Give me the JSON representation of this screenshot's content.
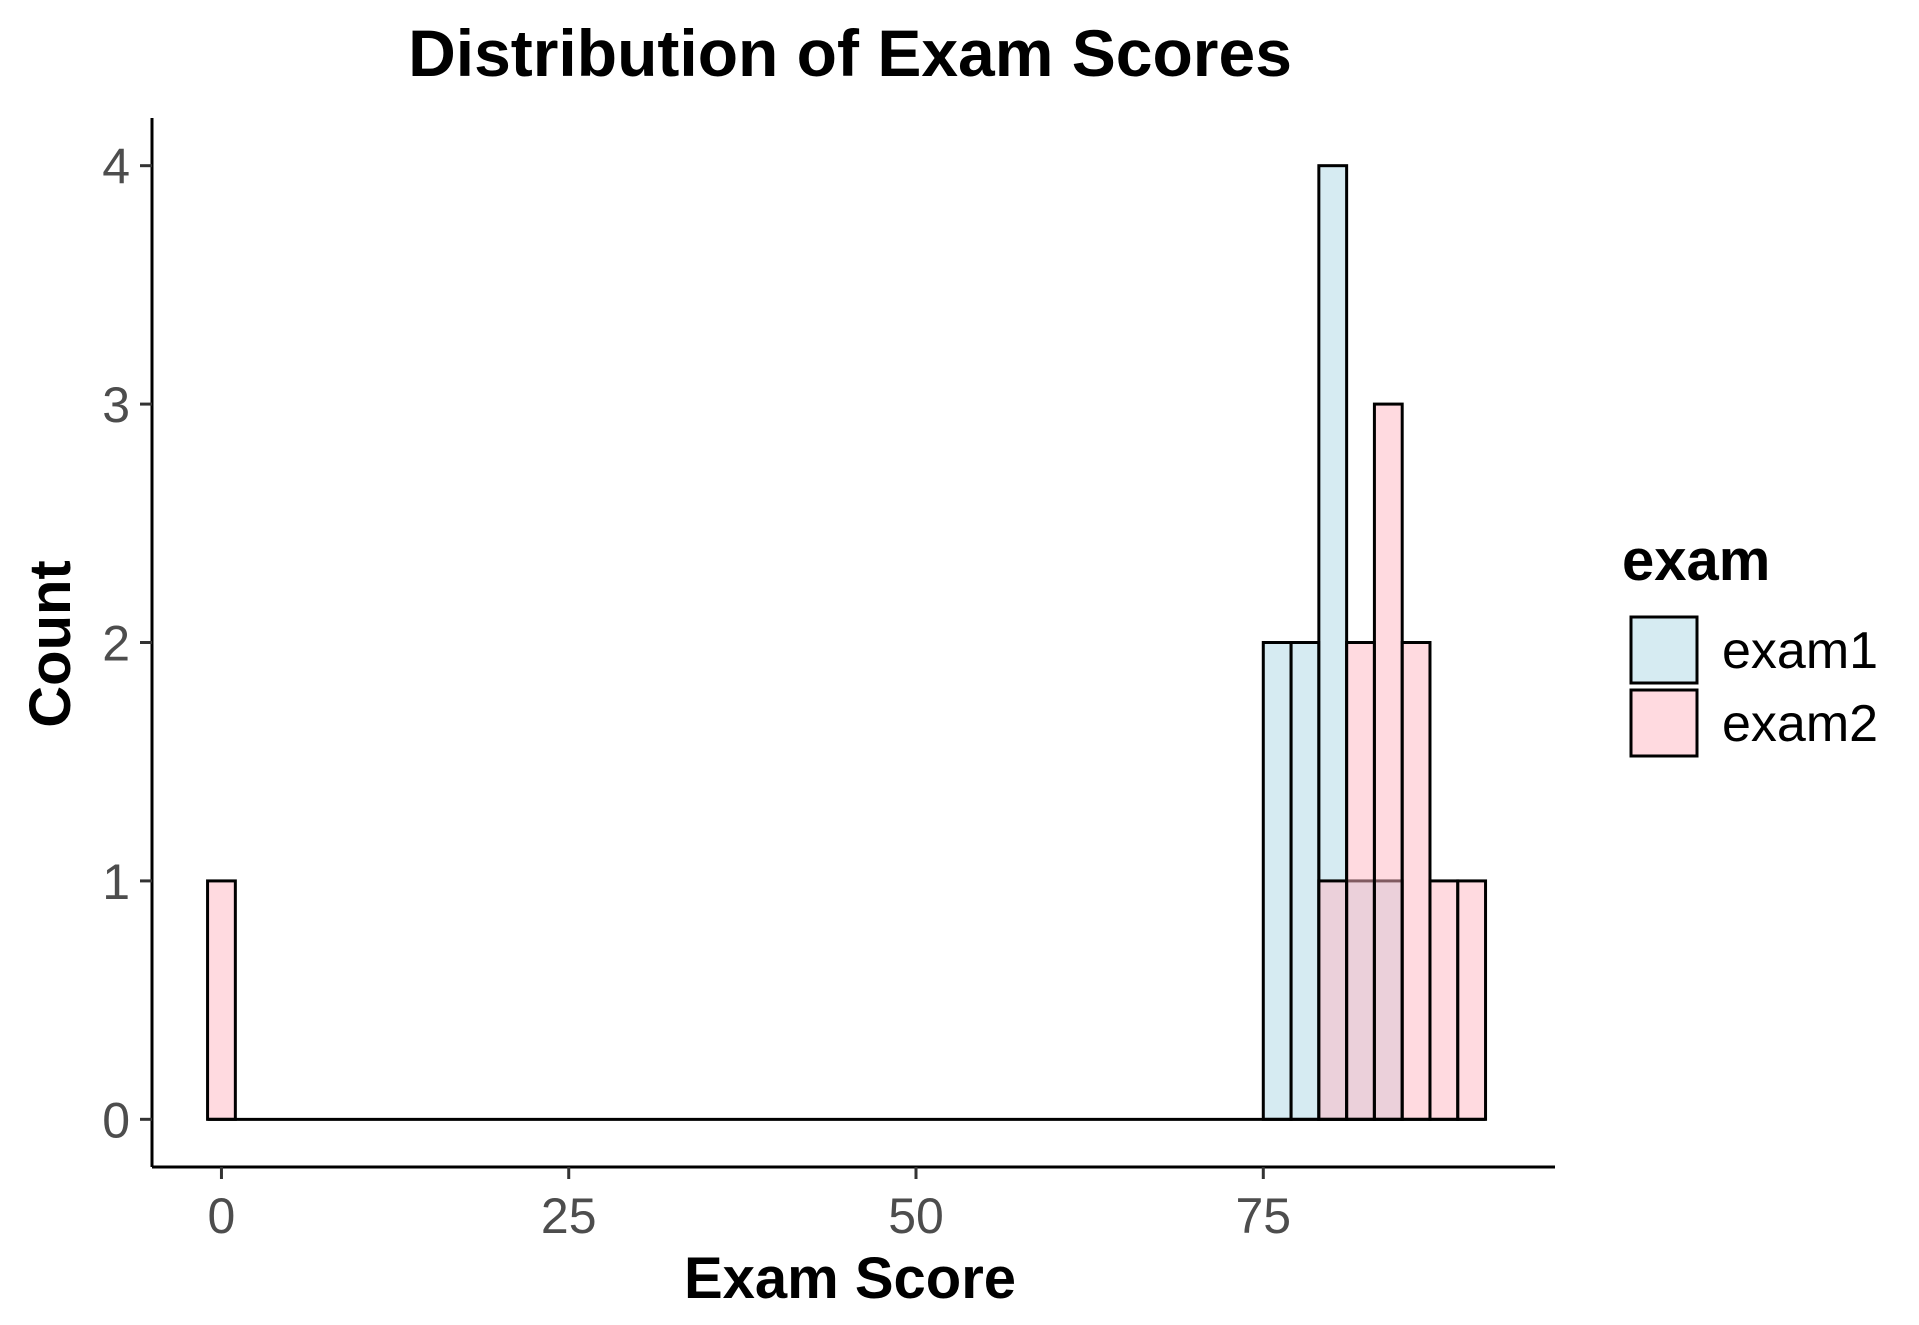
{
  "chart_data": {
    "type": "bar",
    "subtype": "histogram",
    "title": "Distribution of Exam Scores",
    "xlabel": "Exam Score",
    "ylabel": "Count",
    "xlim": [
      -5,
      96
    ],
    "ylim": [
      -0.2,
      4.2
    ],
    "xticks": [
      0,
      25,
      50,
      75
    ],
    "yticks": [
      0,
      1,
      2,
      3,
      4
    ],
    "bin_width": 2,
    "grid": false,
    "legend": {
      "title": "exam",
      "placement": "right",
      "entries": [
        {
          "name": "exam1",
          "color": "#add8e6"
        },
        {
          "name": "exam2",
          "color": "#ffb6c1"
        }
      ]
    },
    "series": [
      {
        "name": "exam1",
        "color": "#add8e6",
        "bins": [
          {
            "x": 76,
            "count": 2
          },
          {
            "x": 78,
            "count": 2
          },
          {
            "x": 80,
            "count": 4
          },
          {
            "x": 82,
            "count": 1
          },
          {
            "x": 84,
            "count": 1
          }
        ]
      },
      {
        "name": "exam2",
        "color": "#ffb6c1",
        "bins": [
          {
            "x": 0,
            "count": 1
          },
          {
            "x": 80,
            "count": 1
          },
          {
            "x": 82,
            "count": 2
          },
          {
            "x": 84,
            "count": 3
          },
          {
            "x": 86,
            "count": 2
          },
          {
            "x": 88,
            "count": 1
          },
          {
            "x": 90,
            "count": 1
          }
        ]
      }
    ]
  }
}
